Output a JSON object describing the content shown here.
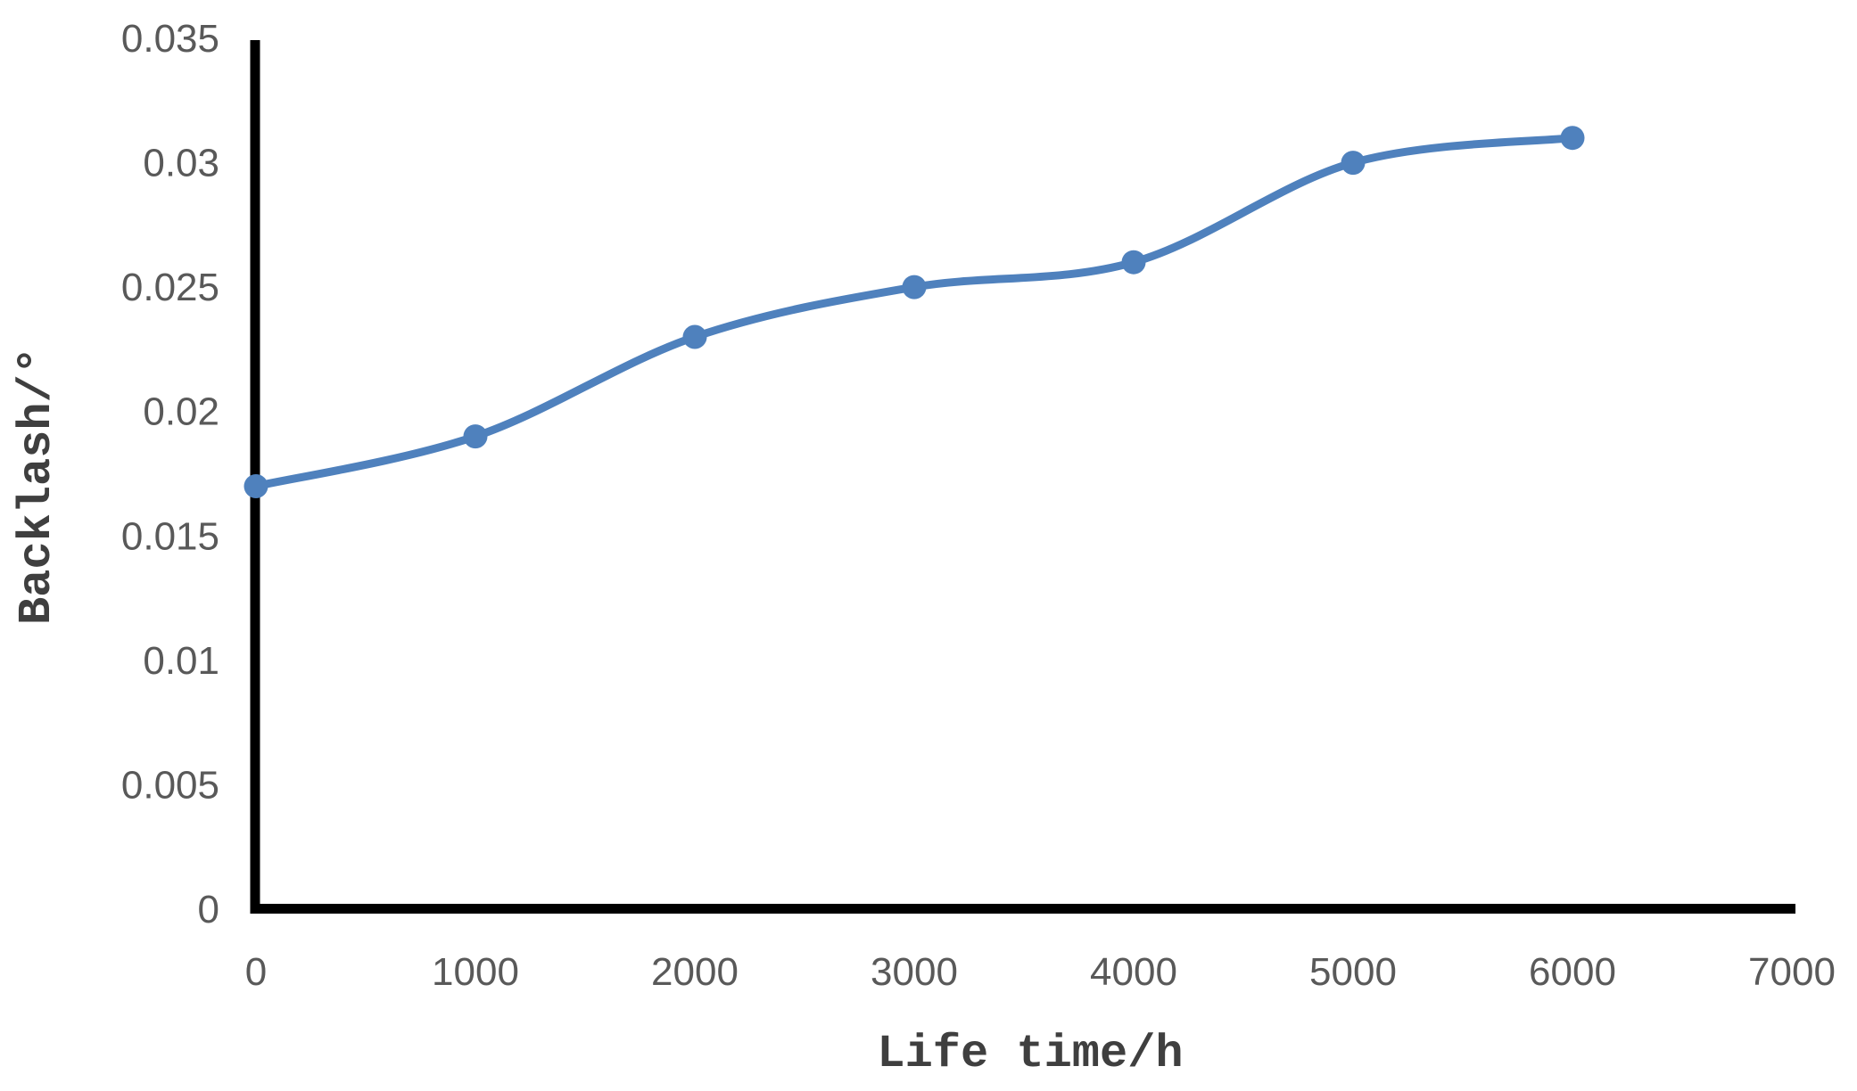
{
  "chart_data": {
    "type": "line",
    "title": "",
    "xlabel": "Life time/h",
    "ylabel": "Backlash/°",
    "x": [
      0,
      1000,
      2000,
      3000,
      4000,
      5000,
      6000
    ],
    "values": [
      0.017,
      0.019,
      0.023,
      0.025,
      0.026,
      0.03,
      0.031
    ],
    "xlim": [
      0,
      7000
    ],
    "ylim": [
      0,
      0.035
    ],
    "x_ticks": [
      0,
      1000,
      2000,
      3000,
      4000,
      5000,
      6000,
      7000
    ],
    "x_tick_labels": [
      "0",
      "1000",
      "2000",
      "3000",
      "4000",
      "5000",
      "6000",
      "7000"
    ],
    "y_ticks": [
      0,
      0.005,
      0.01,
      0.015,
      0.02,
      0.025,
      0.03,
      0.035
    ],
    "y_tick_labels": [
      "0",
      "0.005",
      "0.01",
      "0.015",
      "0.02",
      "0.025",
      "0.03",
      "0.035"
    ],
    "grid": false,
    "legend_position": "none",
    "line_smooth": true,
    "marker": "circle"
  },
  "style": {
    "line_color": "#4F81BD",
    "marker_color": "#4F81BD",
    "axis_line_color": "#000000",
    "tick_label_color": "#595959",
    "axis_title_color": "#3F3F3F",
    "background_color": "#FFFFFF"
  }
}
